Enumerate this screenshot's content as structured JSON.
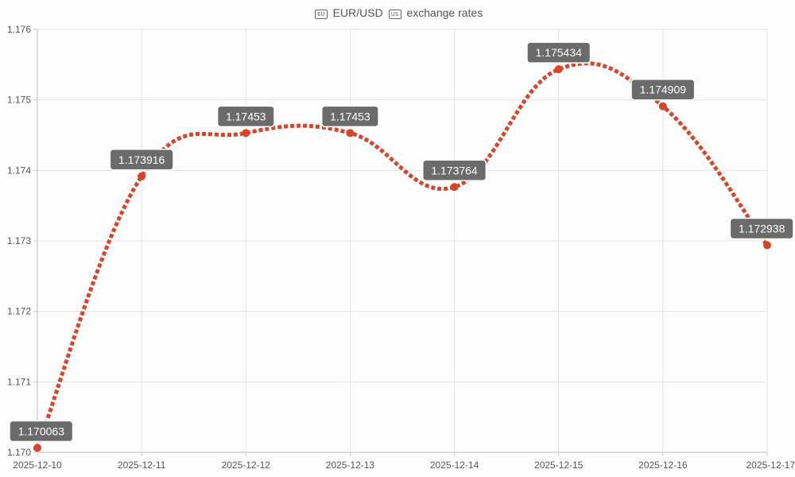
{
  "chart_data": {
    "type": "line",
    "title": {
      "currency_base_flag": "EU",
      "text_base": "EUR/USD",
      "currency_quote_flag": "US",
      "text_suffix": "exchange rates"
    },
    "categories": [
      "2025-12-10",
      "2025-12-11",
      "2025-12-12",
      "2025-12-13",
      "2025-12-14",
      "2025-12-15",
      "2025-12-16",
      "2025-12-17"
    ],
    "series": [
      {
        "values": [
          1.170063,
          1.173916,
          1.17453,
          1.17453,
          1.173764,
          1.175434,
          1.174909,
          1.172938
        ],
        "labels": [
          "1.170063",
          "1.173916",
          "1.17453",
          "1.17453",
          "1.173764",
          "1.175434",
          "1.174909",
          "1.172938"
        ],
        "color": "#d9432a",
        "line_style": "dotted",
        "smooth": true
      }
    ],
    "ylim": [
      1.17,
      1.176
    ],
    "y_ticks": [
      "1.170",
      "1.171",
      "1.172",
      "1.173",
      "1.174",
      "1.175",
      "1.176"
    ],
    "grid": true,
    "label_box_color": "#6b6b6b"
  }
}
